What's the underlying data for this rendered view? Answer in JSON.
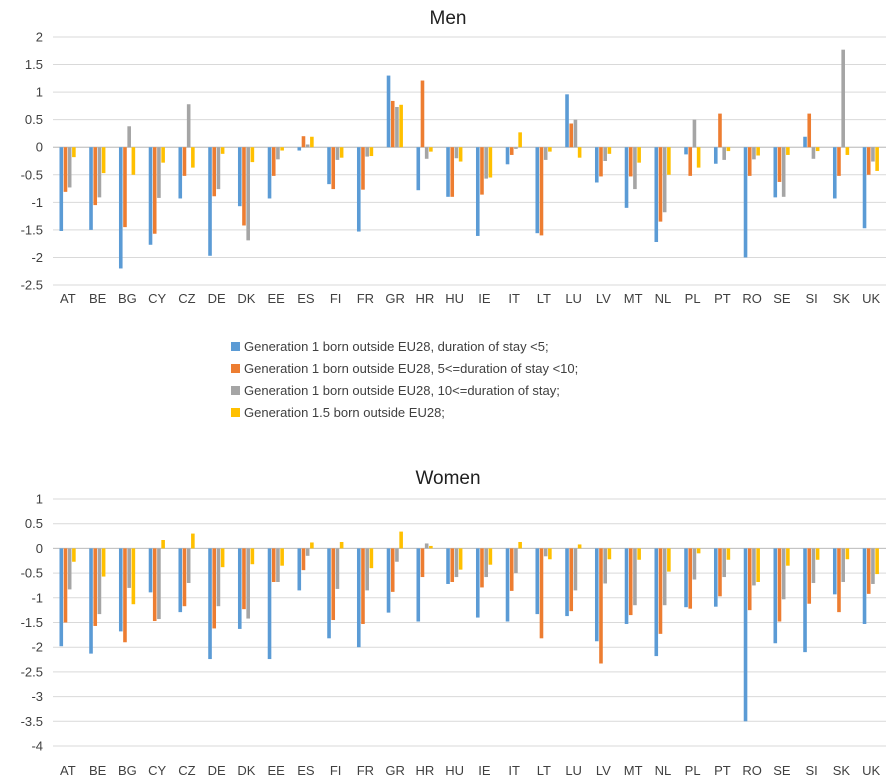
{
  "colors": [
    "#5B9BD5",
    "#ED7D31",
    "#A5A5A5",
    "#FFC000"
  ],
  "legend": [
    "Generation 1 born outside EU28, duration of stay <5;",
    "Generation 1 born outside EU28, 5<=duration of stay <10;",
    "Generation 1 born outside EU28, 10<=duration of stay;",
    "Generation 1.5 born outside EU28;"
  ],
  "chart_data": [
    {
      "type": "bar",
      "title": "Men",
      "ylim": [
        -2.5,
        2
      ],
      "yticks": [
        2,
        1.5,
        1,
        0.5,
        0,
        -0.5,
        -1,
        -1.5,
        -2,
        -2.5
      ],
      "ytick_labels": [
        "2",
        "1.5",
        "1",
        "0.5",
        "0",
        "-0.5",
        "-1",
        "-1.5",
        "-2",
        "-2.5"
      ],
      "grid": true,
      "legend_position": "bottom",
      "categories": [
        "AT",
        "BE",
        "BG",
        "CY",
        "CZ",
        "DE",
        "DK",
        "EE",
        "ES",
        "FI",
        "FR",
        "GR",
        "HR",
        "HU",
        "IE",
        "IT",
        "LT",
        "LU",
        "LV",
        "MT",
        "NL",
        "PL",
        "PT",
        "RO",
        "SE",
        "SI",
        "SK",
        "UK"
      ],
      "series": [
        {
          "name": "Generation 1 born outside EU28, duration of stay <5;",
          "values": [
            -1.52,
            -1.5,
            -2.2,
            -1.77,
            -0.93,
            -1.97,
            -1.07,
            -0.93,
            -0.06,
            -0.67,
            -1.53,
            1.3,
            -0.78,
            -0.9,
            -1.61,
            -0.31,
            -1.56,
            0.96,
            -0.64,
            -1.1,
            -1.72,
            -0.13,
            -0.3,
            -2.0,
            -0.91,
            0.19,
            -0.93,
            -1.47
          ]
        },
        {
          "name": "Generation 1 born outside EU28, 5<=duration of stay <10;",
          "values": [
            -0.81,
            -1.05,
            -1.45,
            -1.57,
            -0.52,
            -0.89,
            -1.42,
            -0.52,
            0.2,
            -0.76,
            -0.77,
            0.84,
            1.21,
            -0.9,
            -0.86,
            -0.14,
            -1.6,
            0.43,
            -0.53,
            -0.53,
            -1.35,
            -0.52,
            0.61,
            -0.52,
            -0.63,
            0.61,
            -0.52,
            -0.5
          ]
        },
        {
          "name": "Generation 1 born outside EU28, 10<=duration of stay;",
          "values": [
            -0.73,
            -0.91,
            0.38,
            -0.92,
            0.78,
            -0.76,
            -1.69,
            -0.22,
            0.05,
            -0.23,
            -0.17,
            0.73,
            -0.21,
            -0.2,
            -0.57,
            -0.03,
            -0.23,
            0.5,
            -0.25,
            -0.76,
            -1.18,
            0.5,
            -0.23,
            -0.22,
            -0.9,
            -0.21,
            1.77,
            -0.26
          ]
        },
        {
          "name": "Generation 1.5 born outside EU28;",
          "values": [
            -0.18,
            -0.47,
            -0.5,
            -0.28,
            -0.37,
            -0.12,
            -0.27,
            -0.06,
            0.19,
            -0.19,
            -0.16,
            0.77,
            -0.08,
            -0.26,
            -0.55,
            0.27,
            -0.08,
            -0.19,
            -0.12,
            -0.28,
            -0.5,
            -0.37,
            -0.07,
            -0.15,
            -0.14,
            -0.07,
            -0.14,
            -0.43
          ]
        }
      ]
    },
    {
      "type": "bar",
      "title": "Women",
      "ylim": [
        -4,
        1
      ],
      "yticks": [
        1,
        0.5,
        0,
        -0.5,
        -1,
        -1.5,
        -2,
        -2.5,
        -3,
        -3.5,
        -4
      ],
      "ytick_labels": [
        "1",
        "0.5",
        "0",
        "-0.5",
        "-1",
        "-1.5",
        "-2",
        "-2.5",
        "-3",
        "-3.5",
        "-4"
      ],
      "grid": true,
      "categories": [
        "AT",
        "BE",
        "BG",
        "CY",
        "CZ",
        "DE",
        "DK",
        "EE",
        "ES",
        "FI",
        "FR",
        "GR",
        "HR",
        "HU",
        "IE",
        "IT",
        "LT",
        "LU",
        "LV",
        "MT",
        "NL",
        "PL",
        "PT",
        "RO",
        "SE",
        "SI",
        "SK",
        "UK"
      ],
      "series": [
        {
          "name": "Generation 1 born outside EU28, duration of stay <5;",
          "values": [
            -1.98,
            -2.13,
            -1.68,
            -0.89,
            -1.29,
            -2.24,
            -1.63,
            -2.24,
            -0.85,
            -1.82,
            -2.0,
            -1.3,
            -1.48,
            -0.72,
            -1.4,
            -1.48,
            -1.33,
            -1.37,
            -1.88,
            -1.53,
            -2.18,
            -1.19,
            -1.18,
            -3.5,
            -1.92,
            -2.1,
            -0.93,
            -1.53
          ]
        },
        {
          "name": "Generation 1 born outside EU28, 5<=duration of stay <10;",
          "values": [
            -1.5,
            -1.57,
            -1.9,
            -1.47,
            -1.17,
            -1.62,
            -1.23,
            -0.68,
            -0.44,
            -1.45,
            -1.53,
            -0.88,
            -0.58,
            -0.68,
            -0.79,
            -0.86,
            -1.82,
            -1.27,
            -2.33,
            -1.35,
            -1.73,
            -1.22,
            -0.97,
            -1.25,
            -1.48,
            -1.12,
            -1.29,
            -0.92
          ]
        },
        {
          "name": "Generation 1 born outside EU28, 10<=duration of stay;",
          "values": [
            -0.83,
            -1.33,
            -0.8,
            -1.43,
            -0.7,
            -1.17,
            -1.42,
            -0.68,
            -0.15,
            -0.82,
            -0.85,
            -0.27,
            0.1,
            -0.58,
            -0.58,
            -0.5,
            -0.16,
            -0.85,
            -0.71,
            -1.15,
            -1.15,
            -0.63,
            -0.58,
            -0.75,
            -1.03,
            -0.7,
            -0.68,
            -0.72
          ]
        },
        {
          "name": "Generation 1.5 born outside EU28;",
          "values": [
            -0.27,
            -0.57,
            -1.13,
            0.17,
            0.3,
            -0.38,
            -0.32,
            -0.35,
            0.12,
            0.13,
            -0.4,
            0.34,
            0.05,
            -0.43,
            -0.33,
            0.13,
            -0.22,
            0.08,
            -0.22,
            -0.23,
            -0.47,
            -0.1,
            -0.23,
            -0.68,
            -0.35,
            -0.23,
            -0.22,
            -0.52
          ]
        }
      ]
    }
  ]
}
